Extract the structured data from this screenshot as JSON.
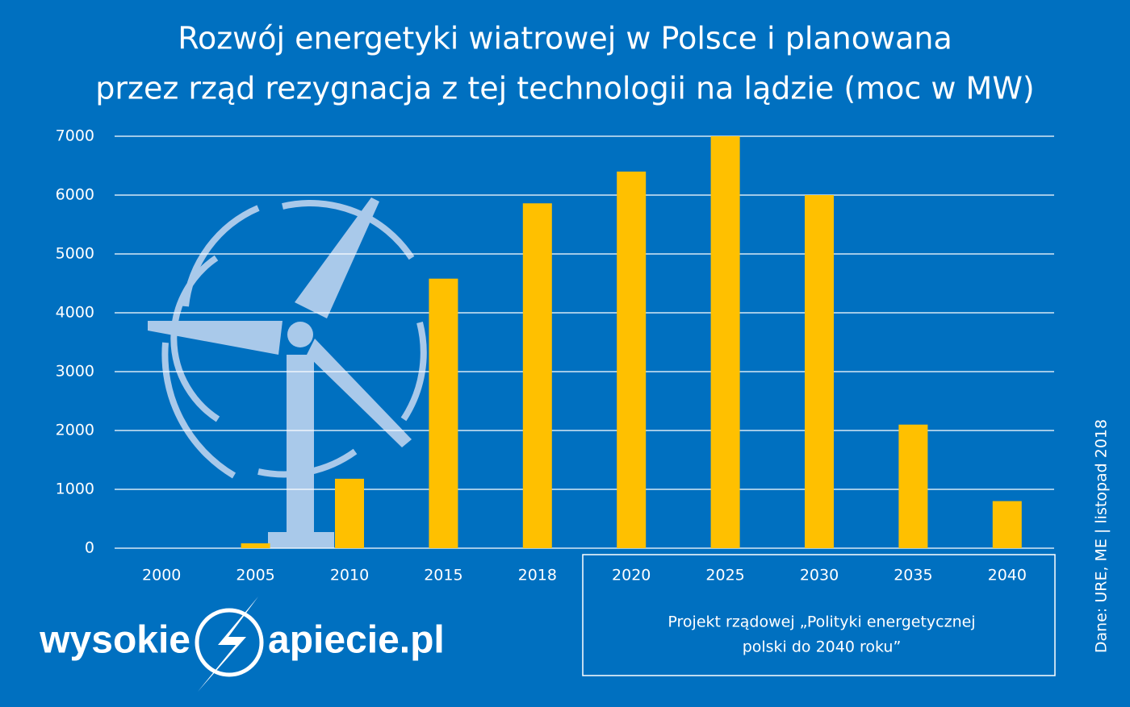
{
  "chart_data": {
    "type": "bar",
    "title": [
      "Rozwój energetyki wiatrowej w Polsce i planowana",
      "przez rząd rezygnacja z tej technologii na lądzie (moc w MW)"
    ],
    "categories": [
      "2000",
      "2005",
      "2010",
      "2015",
      "2018",
      "2020",
      "2025",
      "2030",
      "2035",
      "2040"
    ],
    "values": [
      0,
      83,
      1180,
      4580,
      5860,
      6400,
      7000,
      6000,
      2100,
      800
    ],
    "color": "#ffc000",
    "ylim": [
      0,
      7000
    ],
    "yticks": [
      0,
      1000,
      2000,
      3000,
      4000,
      5000,
      6000,
      7000
    ],
    "grid": true,
    "annotation": [
      "Projekt rządowej „Polityki energetycznej",
      "polski do 2040 roku”"
    ],
    "source": "Dane: URE, ME  |  listopad 2018",
    "logo": [
      "wysokie",
      "apiecie.pl"
    ]
  }
}
